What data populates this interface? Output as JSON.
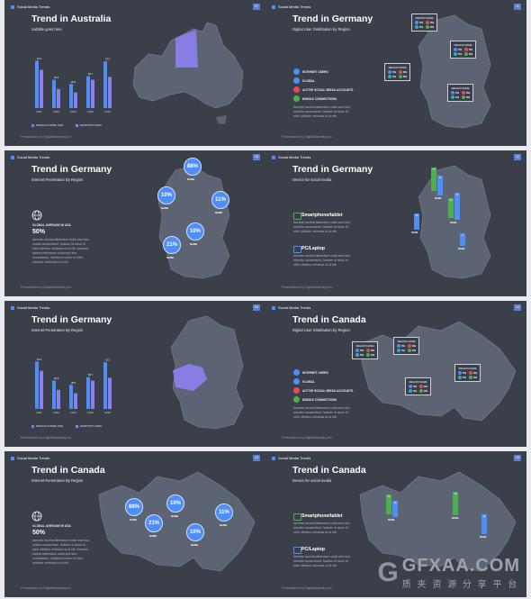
{
  "brand": "Social Media Trends",
  "footer": "Presentation by DigitalMarketing Inc.",
  "legend": {
    "mobile": "MOBILE PHONE USE",
    "desktop": "DESKTOP USER"
  },
  "lorem": "Aenean lacinia bibendum nulla sed duo lobortis consectetur. Nullam id dolor id nibh ultricies vehicula ut id elit.",
  "lorem_short": "Aenean lacinia bibendum nulla sed duo, mattis consectetur. Nullam id dolor id nibh ultricies vehicula ut id elit. Aenean lacinia bibendum nulla sed duo consectetur. Nullam id dolor id nibh ultricies vehicula ut id elit.",
  "global_avg": {
    "label": "GLOBAL AVERAGE IN USA",
    "value": "50%"
  },
  "ditems": [
    "INTERNET USERS",
    "GLOBAL",
    "ACTIVE SOCIAL MEDIA ACCOUNTS",
    "MOBILE CONNECTIONS"
  ],
  "region": "REGION NAME",
  "cells": [
    "5%",
    "8%",
    "5%",
    "8%"
  ],
  "device": {
    "a": "Smartphone/tablet",
    "b": "PC/Laptop"
  },
  "pin_name": "NAME",
  "slides": [
    {
      "num": "07",
      "title": "Trend in Australia",
      "sub": "Subtitle goes here"
    },
    {
      "num": "11",
      "title": "Trend in Germany",
      "sub": "Digital User Distribution by Region"
    },
    {
      "num": "10",
      "title": "Trend in Germany",
      "sub": "Internet Penetration By Region"
    },
    {
      "num": "12",
      "title": "Trend in Germany",
      "sub": "Device for social media"
    },
    {
      "num": "09",
      "title": "Trend in Germany",
      "sub": "Internet Penetration By Region"
    },
    {
      "num": "14",
      "title": "Trend in Canada",
      "sub": "Digital User Distribution by Region"
    },
    {
      "num": "13",
      "title": "Trend in Canada",
      "sub": "Internet Penetration By Region"
    },
    {
      "num": "15",
      "title": "Trend in Canada",
      "sub": "Device for social media"
    }
  ],
  "chart_data": {
    "type": "bar",
    "categories": [
      "2011",
      "2012",
      "2013",
      "2014",
      "2015"
    ],
    "series": [
      {
        "name": "MOBILE PHONE USE",
        "values": [
          67,
          40,
          34,
          45,
          66
        ]
      },
      {
        "name": "DESKTOP USER",
        "values": [
          54,
          27,
          22,
          40,
          44
        ]
      }
    ],
    "data_labels": [
      "61.2",
      "29.4",
      "25.6",
      "60.7",
      "72.3"
    ],
    "colors": {
      "mobile": "#4f8ef7",
      "desktop": "#8c7ff0"
    }
  },
  "pins_de": [
    "88%",
    "10%",
    "11%",
    "10%",
    "21%"
  ],
  "pins_ca": [
    "88%",
    "10%",
    "21%",
    "10%",
    "11%"
  ],
  "dev_bars_de": [
    "75",
    "60",
    "54",
    "47",
    "23",
    "17"
  ],
  "dev_bars_ca": [
    "59",
    "44",
    "46",
    "29"
  ],
  "colors": {
    "blue": "#4f8ef7",
    "purple": "#8c7ff0",
    "green": "#4caf50",
    "red": "#e64a55",
    "teal": "#25b5b5",
    "map": "#5c6473"
  },
  "watermark": {
    "logo": "G",
    "l1": "GFXAA.COM",
    "l2": "质 夹 资 源 分 享 平 台"
  }
}
